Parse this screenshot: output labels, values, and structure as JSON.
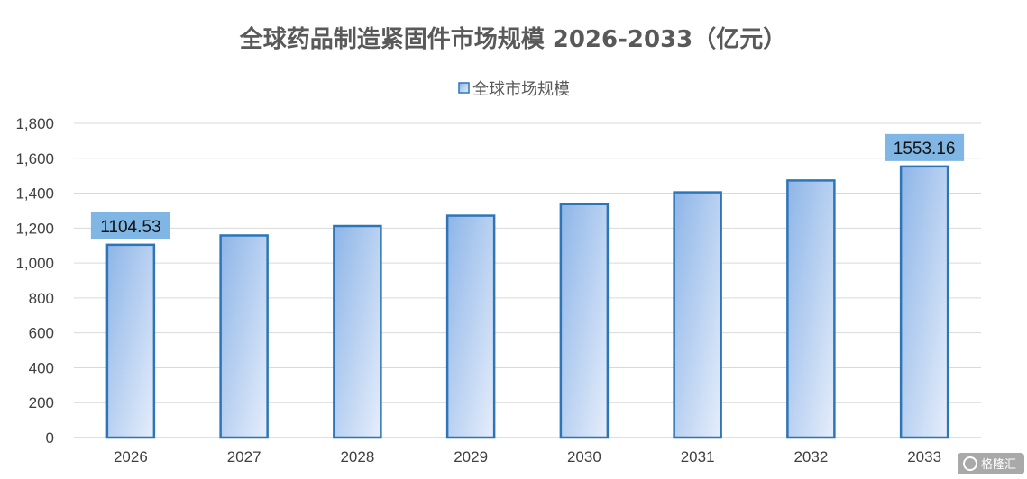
{
  "chart_data": {
    "type": "bar",
    "title": "全球药品制造紧固件市场规模 2026-2033（亿元）",
    "categories": [
      "2026",
      "2027",
      "2028",
      "2029",
      "2030",
      "2031",
      "2032",
      "2033"
    ],
    "series": [
      {
        "name": "全球市场规模",
        "values": [
          1104.53,
          1158,
          1212,
          1271,
          1337,
          1405,
          1473,
          1553.16
        ]
      }
    ],
    "data_labels": [
      {
        "category": "2026",
        "text": "1104.53"
      },
      {
        "category": "2033",
        "text": "1553.16"
      }
    ],
    "y_ticks": [
      "0",
      "200",
      "400",
      "600",
      "800",
      "1,000",
      "1,200",
      "1,400",
      "1,600",
      "1,800"
    ],
    "ylim": [
      0,
      1800
    ],
    "grid": true,
    "legend_position": "top-center",
    "colors": {
      "bar_border": "#2e75b6",
      "bar_fill_top": "#8db5e8",
      "bar_fill_bottom": "#e3ecfa",
      "grid": "#d9d9d9",
      "label_bg": "#7fb6e4"
    }
  },
  "watermark": {
    "text": "格隆汇",
    "icon": "gelonghui-logo-icon"
  }
}
